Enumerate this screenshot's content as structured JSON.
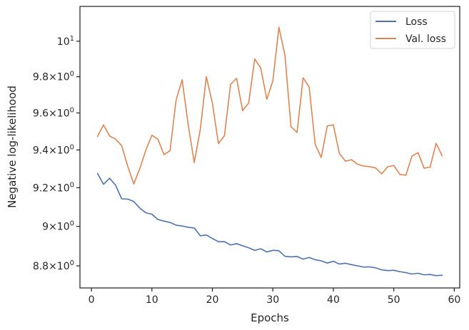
{
  "chart_data": {
    "type": "line",
    "title": "",
    "xlabel": "Epochs",
    "ylabel": "Negative log-likelihood",
    "y_scale": "log",
    "xlim": [
      -1.9,
      60.9
    ],
    "ylim": [
      8.69,
      10.2
    ],
    "grid": false,
    "legend_position": "top-right",
    "x_ticks": [
      {
        "value": 0,
        "label": "0"
      },
      {
        "value": 10,
        "label": "10"
      },
      {
        "value": 20,
        "label": "20"
      },
      {
        "value": 30,
        "label": "30"
      },
      {
        "value": 40,
        "label": "40"
      },
      {
        "value": 50,
        "label": "50"
      },
      {
        "value": 60,
        "label": "60"
      }
    ],
    "y_ticks": [
      {
        "value": 8.8,
        "mant": "8.8",
        "base": "10",
        "exp": "0"
      },
      {
        "value": 9.0,
        "mant": "9",
        "base": "10",
        "exp": "0"
      },
      {
        "value": 9.2,
        "mant": "9.2",
        "base": "10",
        "exp": "0"
      },
      {
        "value": 9.4,
        "mant": "9.4",
        "base": "10",
        "exp": "0"
      },
      {
        "value": 9.6,
        "mant": "9.6",
        "base": "10",
        "exp": "0"
      },
      {
        "value": 9.8,
        "mant": "9.8",
        "base": "10",
        "exp": "0"
      },
      {
        "value": 10.0,
        "mant": "",
        "base": "10",
        "exp": "1"
      }
    ],
    "x": [
      1,
      2,
      3,
      4,
      5,
      6,
      7,
      8,
      9,
      10,
      11,
      12,
      13,
      14,
      15,
      16,
      17,
      18,
      19,
      20,
      21,
      22,
      23,
      24,
      25,
      26,
      27,
      28,
      29,
      30,
      31,
      32,
      33,
      34,
      35,
      36,
      37,
      38,
      39,
      40,
      41,
      42,
      43,
      44,
      45,
      46,
      47,
      48,
      49,
      50,
      51,
      52,
      53,
      54,
      55,
      56,
      57,
      58
    ],
    "series": [
      {
        "name": "Loss",
        "color": "#4c72b0",
        "values": [
          9.275,
          9.218,
          9.25,
          9.213,
          9.142,
          9.141,
          9.128,
          9.094,
          9.07,
          9.062,
          9.035,
          9.027,
          9.02,
          9.006,
          9.002,
          8.995,
          8.992,
          8.952,
          8.956,
          8.938,
          8.922,
          8.922,
          8.905,
          8.912,
          8.901,
          8.891,
          8.878,
          8.886,
          8.87,
          8.878,
          8.876,
          8.848,
          8.845,
          8.847,
          8.834,
          8.842,
          8.831,
          8.825,
          8.814,
          8.823,
          8.809,
          8.813,
          8.806,
          8.8,
          8.794,
          8.795,
          8.79,
          8.78,
          8.776,
          8.778,
          8.771,
          8.766,
          8.759,
          8.763,
          8.755,
          8.757,
          8.751,
          8.753
        ]
      },
      {
        "name": "Val. loss",
        "color": "#dd8452",
        "values": [
          9.472,
          9.535,
          9.475,
          9.458,
          9.423,
          9.313,
          9.22,
          9.301,
          9.399,
          9.479,
          9.457,
          9.375,
          9.396,
          9.671,
          9.783,
          9.535,
          9.333,
          9.51,
          9.8,
          9.654,
          9.434,
          9.477,
          9.757,
          9.791,
          9.613,
          9.654,
          9.9,
          9.848,
          9.675,
          9.777,
          10.08,
          9.92,
          9.525,
          9.494,
          9.794,
          9.743,
          9.43,
          9.36,
          9.53,
          9.535,
          9.381,
          9.34,
          9.348,
          9.324,
          9.314,
          9.311,
          9.304,
          9.273,
          9.311,
          9.317,
          9.27,
          9.266,
          9.367,
          9.386,
          9.303,
          9.309,
          9.435,
          9.368
        ]
      }
    ]
  }
}
